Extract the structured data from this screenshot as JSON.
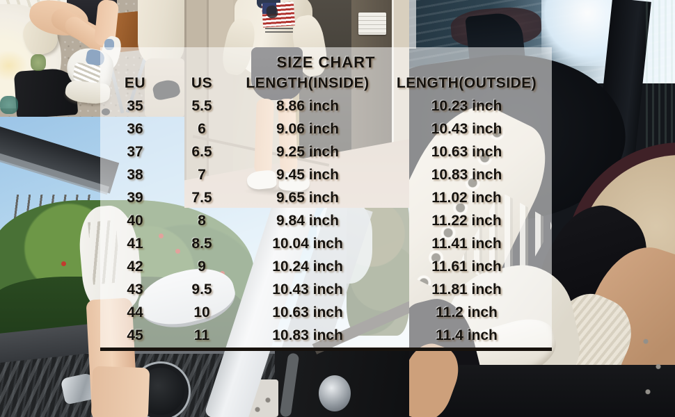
{
  "chart_data": {
    "type": "table",
    "title": "SIZE CHART",
    "columns": [
      "EU",
      "US",
      "LENGTH(INSIDE)",
      "LENGTH(OUTSIDE)"
    ],
    "rows": [
      [
        "35",
        "5.5",
        "8.86 inch",
        "10.23 inch"
      ],
      [
        "36",
        "6",
        "9.06 inch",
        "10.43 inch"
      ],
      [
        "37",
        "6.5",
        "9.25 inch",
        "10.63 inch"
      ],
      [
        "38",
        "7",
        "9.45 inch",
        "10.83 inch"
      ],
      [
        "39",
        "7.5",
        "9.65 inch",
        "11.02 inch"
      ],
      [
        "40",
        "8",
        "9.84 inch",
        "11.22 inch"
      ],
      [
        "41",
        "8.5",
        "10.04 inch",
        "11.41 inch"
      ],
      [
        "42",
        "9",
        "10.24 inch",
        "11.61 inch"
      ],
      [
        "43",
        "9.5",
        "10.43 inch",
        "11.81 inch"
      ],
      [
        "44",
        "10",
        "10.63 inch",
        "11.2 inch"
      ],
      [
        "45",
        "11",
        "10.83 inch",
        "11.4 inch"
      ]
    ],
    "layout_hints": {
      "overlay": "semi-transparent white panel over photo collage",
      "bottom_border": true
    }
  },
  "colors": {
    "table_text": "#15120e",
    "overlay_panel": "rgba(255,255,255,0.53)",
    "table_bottom_border": "#18130e",
    "sky_blue": "#9cc5e7",
    "greenery": "#497136",
    "sneaker_white": "#f5f4f0",
    "heel_tab_blue": "#8ea6c2",
    "seat_tan": "#c4ae8e"
  }
}
